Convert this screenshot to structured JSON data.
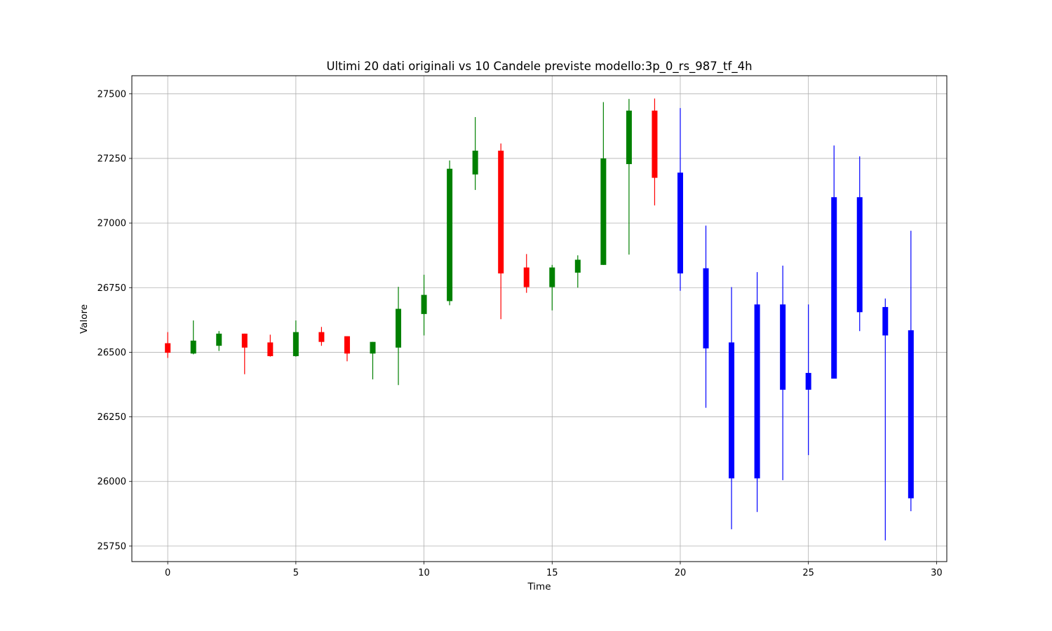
{
  "chart_data": {
    "type": "candlestick",
    "title": "Ultimi 20 dati originali vs 10 Candele previste modello:3p_0_rs_987_tf_4h",
    "xlabel": "Time",
    "ylabel": "Valore",
    "xlim": [
      -1.4,
      30.4
    ],
    "ylim": [
      25690,
      27570
    ],
    "xticks": [
      0,
      5,
      10,
      15,
      20,
      25,
      30
    ],
    "yticks": [
      25750,
      26000,
      26250,
      26500,
      26750,
      27000,
      27250,
      27500
    ],
    "grid": true,
    "colors": {
      "up": "#008000",
      "down": "#ff0000",
      "forecast": "#0000ff"
    },
    "series": [
      {
        "kind": "original",
        "candles": [
          {
            "x": 0,
            "open": 26535,
            "high": 26578,
            "low": 26478,
            "close": 26498
          },
          {
            "x": 1,
            "open": 26495,
            "high": 26623,
            "low": 26492,
            "close": 26545
          },
          {
            "x": 2,
            "open": 26525,
            "high": 26582,
            "low": 26505,
            "close": 26572
          },
          {
            "x": 3,
            "open": 26572,
            "high": 26572,
            "low": 26415,
            "close": 26518
          },
          {
            "x": 4,
            "open": 26538,
            "high": 26568,
            "low": 26483,
            "close": 26485
          },
          {
            "x": 5,
            "open": 26485,
            "high": 26623,
            "low": 26483,
            "close": 26578
          },
          {
            "x": 6,
            "open": 26578,
            "high": 26598,
            "low": 26525,
            "close": 26540
          },
          {
            "x": 7,
            "open": 26562,
            "high": 26562,
            "low": 26465,
            "close": 26495
          },
          {
            "x": 8,
            "open": 26495,
            "high": 26540,
            "low": 26395,
            "close": 26540
          },
          {
            "x": 9,
            "open": 26518,
            "high": 26753,
            "low": 26373,
            "close": 26668
          },
          {
            "x": 10,
            "open": 26648,
            "high": 26800,
            "low": 26565,
            "close": 26722
          },
          {
            "x": 11,
            "open": 26698,
            "high": 27242,
            "low": 26682,
            "close": 27210
          },
          {
            "x": 12,
            "open": 27188,
            "high": 27410,
            "low": 27128,
            "close": 27280
          },
          {
            "x": 13,
            "open": 27280,
            "high": 27308,
            "low": 26628,
            "close": 26805
          },
          {
            "x": 14,
            "open": 26828,
            "high": 26880,
            "low": 26730,
            "close": 26752
          },
          {
            "x": 15,
            "open": 26752,
            "high": 26838,
            "low": 26662,
            "close": 26828
          },
          {
            "x": 16,
            "open": 26808,
            "high": 26875,
            "low": 26750,
            "close": 26858
          },
          {
            "x": 17,
            "open": 26838,
            "high": 27468,
            "low": 26838,
            "close": 27250
          },
          {
            "x": 18,
            "open": 27228,
            "high": 27480,
            "low": 26878,
            "close": 27435
          },
          {
            "x": 19,
            "open": 27435,
            "high": 27482,
            "low": 27068,
            "close": 27175
          }
        ]
      },
      {
        "kind": "forecast",
        "candles": [
          {
            "x": 20,
            "open": 27195,
            "high": 27445,
            "low": 26738,
            "close": 26805
          },
          {
            "x": 21,
            "open": 26825,
            "high": 26990,
            "low": 26285,
            "close": 26515
          },
          {
            "x": 22,
            "open": 26538,
            "high": 26752,
            "low": 25815,
            "close": 26012
          },
          {
            "x": 23,
            "open": 26685,
            "high": 26810,
            "low": 25882,
            "close": 26012
          },
          {
            "x": 24,
            "open": 26685,
            "high": 26835,
            "low": 26005,
            "close": 26355
          },
          {
            "x": 25,
            "open": 26420,
            "high": 26685,
            "low": 26102,
            "close": 26355
          },
          {
            "x": 26,
            "open": 27100,
            "high": 27300,
            "low": 26398,
            "close": 26398
          },
          {
            "x": 27,
            "open": 27100,
            "high": 27258,
            "low": 26582,
            "close": 26655
          },
          {
            "x": 28,
            "open": 26675,
            "high": 26708,
            "low": 25772,
            "close": 26565
          },
          {
            "x": 29,
            "open": 26585,
            "high": 26970,
            "low": 25885,
            "close": 25935
          }
        ]
      }
    ]
  }
}
